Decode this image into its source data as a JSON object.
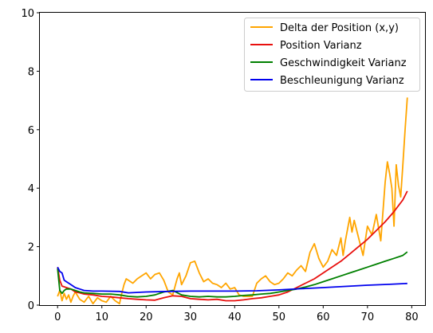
{
  "chart_data": {
    "type": "line",
    "title": "",
    "xlabel": "",
    "ylabel": "",
    "xlim": [
      -4,
      83
    ],
    "ylim": [
      0,
      10
    ],
    "xticks": [
      0,
      10,
      20,
      30,
      40,
      50,
      60,
      70,
      80
    ],
    "yticks": [
      0,
      2,
      4,
      6,
      8,
      10
    ],
    "grid": false,
    "legend_position": "top-right",
    "series": [
      {
        "name": "Delta der Position (x,y)",
        "color": "#ffa500",
        "x": [
          0,
          0.5,
          1,
          1.5,
          2,
          2.5,
          3,
          3.5,
          4,
          5,
          6,
          7,
          8,
          9,
          10,
          11,
          12,
          13,
          14,
          14.5,
          15,
          15.5,
          16,
          17,
          18,
          19,
          20,
          21,
          22,
          23,
          24,
          25,
          26,
          27,
          27.5,
          28,
          29,
          30,
          31,
          32,
          33,
          34,
          35,
          36,
          37,
          38,
          39,
          40,
          41,
          42,
          43,
          44,
          45,
          46,
          47,
          48,
          49,
          50,
          51,
          52,
          53,
          54,
          55,
          56,
          57,
          58,
          59,
          60,
          61,
          62,
          63,
          64,
          64.5,
          65,
          66,
          66.5,
          67,
          68,
          69,
          70,
          71,
          72,
          73,
          74,
          74.5,
          75,
          75.5,
          76,
          76.5,
          77,
          77.5,
          78,
          78.5,
          79
        ],
        "values": [
          0.3,
          0.5,
          0.15,
          0.4,
          0.2,
          0.35,
          0.1,
          0.3,
          0.45,
          0.2,
          0.1,
          0.3,
          0.05,
          0.25,
          0.15,
          0.1,
          0.3,
          0.15,
          0.05,
          0.4,
          0.7,
          0.9,
          0.85,
          0.75,
          0.9,
          1.0,
          1.1,
          0.9,
          1.05,
          1.1,
          0.85,
          0.45,
          0.35,
          0.9,
          1.1,
          0.7,
          1.0,
          1.45,
          1.5,
          1.1,
          0.8,
          0.9,
          0.75,
          0.7,
          0.6,
          0.75,
          0.55,
          0.6,
          0.35,
          0.3,
          0.3,
          0.3,
          0.75,
          0.9,
          1.0,
          0.8,
          0.7,
          0.75,
          0.9,
          1.1,
          1.0,
          1.2,
          1.35,
          1.15,
          1.8,
          2.1,
          1.6,
          1.3,
          1.5,
          1.9,
          1.7,
          2.3,
          1.7,
          2.2,
          3.0,
          2.5,
          2.9,
          2.3,
          1.7,
          2.7,
          2.4,
          3.1,
          2.2,
          4.2,
          4.9,
          4.5,
          4.0,
          2.7,
          4.8,
          4.1,
          3.7,
          4.8,
          6.0,
          7.1
        ]
      },
      {
        "name": "Position Varianz",
        "color": "#e8100e",
        "x": [
          0,
          0.5,
          1,
          2,
          3,
          4,
          5,
          6,
          8,
          10,
          12,
          14,
          16,
          18,
          20,
          22,
          24,
          26,
          28,
          30,
          32,
          34,
          36,
          38,
          40,
          42,
          44,
          46,
          48,
          50,
          52,
          54,
          56,
          58,
          60,
          62,
          64,
          66,
          68,
          70,
          72,
          74,
          76,
          78,
          79
        ],
        "values": [
          1.3,
          0.85,
          0.65,
          0.6,
          0.55,
          0.45,
          0.42,
          0.38,
          0.35,
          0.3,
          0.28,
          0.25,
          0.22,
          0.2,
          0.18,
          0.17,
          0.25,
          0.32,
          0.3,
          0.22,
          0.2,
          0.18,
          0.2,
          0.15,
          0.15,
          0.18,
          0.22,
          0.25,
          0.3,
          0.35,
          0.45,
          0.6,
          0.75,
          0.9,
          1.1,
          1.3,
          1.5,
          1.75,
          2.0,
          2.25,
          2.55,
          2.85,
          3.2,
          3.6,
          3.9
        ]
      },
      {
        "name": "Geschwindigkeit Varianz",
        "color": "#008000",
        "x": [
          0,
          0.5,
          1,
          1.5,
          2,
          3,
          4,
          5,
          6,
          8,
          10,
          12,
          14,
          16,
          18,
          20,
          22,
          24,
          26,
          28,
          30,
          32,
          34,
          36,
          38,
          40,
          42,
          44,
          46,
          48,
          50,
          52,
          54,
          56,
          58,
          60,
          62,
          64,
          66,
          68,
          70,
          72,
          74,
          76,
          78,
          79
        ],
        "values": [
          1.25,
          0.5,
          0.4,
          0.5,
          0.55,
          0.55,
          0.5,
          0.45,
          0.42,
          0.4,
          0.38,
          0.38,
          0.35,
          0.3,
          0.28,
          0.3,
          0.35,
          0.45,
          0.5,
          0.35,
          0.3,
          0.28,
          0.3,
          0.28,
          0.28,
          0.3,
          0.33,
          0.35,
          0.38,
          0.4,
          0.45,
          0.5,
          0.55,
          0.62,
          0.7,
          0.8,
          0.9,
          1.0,
          1.1,
          1.2,
          1.3,
          1.4,
          1.5,
          1.6,
          1.7,
          1.82
        ]
      },
      {
        "name": "Beschleunigung Varianz",
        "color": "#0000ee",
        "x": [
          0,
          0.5,
          1,
          1.5,
          2,
          3,
          4,
          5,
          6,
          8,
          10,
          14,
          16,
          20,
          25,
          30,
          35,
          40,
          45,
          50,
          55,
          60,
          65,
          70,
          75,
          79
        ],
        "values": [
          1.3,
          1.15,
          1.1,
          0.85,
          0.8,
          0.7,
          0.6,
          0.55,
          0.5,
          0.48,
          0.48,
          0.47,
          0.42,
          0.45,
          0.47,
          0.48,
          0.48,
          0.48,
          0.49,
          0.52,
          0.56,
          0.6,
          0.64,
          0.68,
          0.71,
          0.74
        ]
      }
    ]
  }
}
